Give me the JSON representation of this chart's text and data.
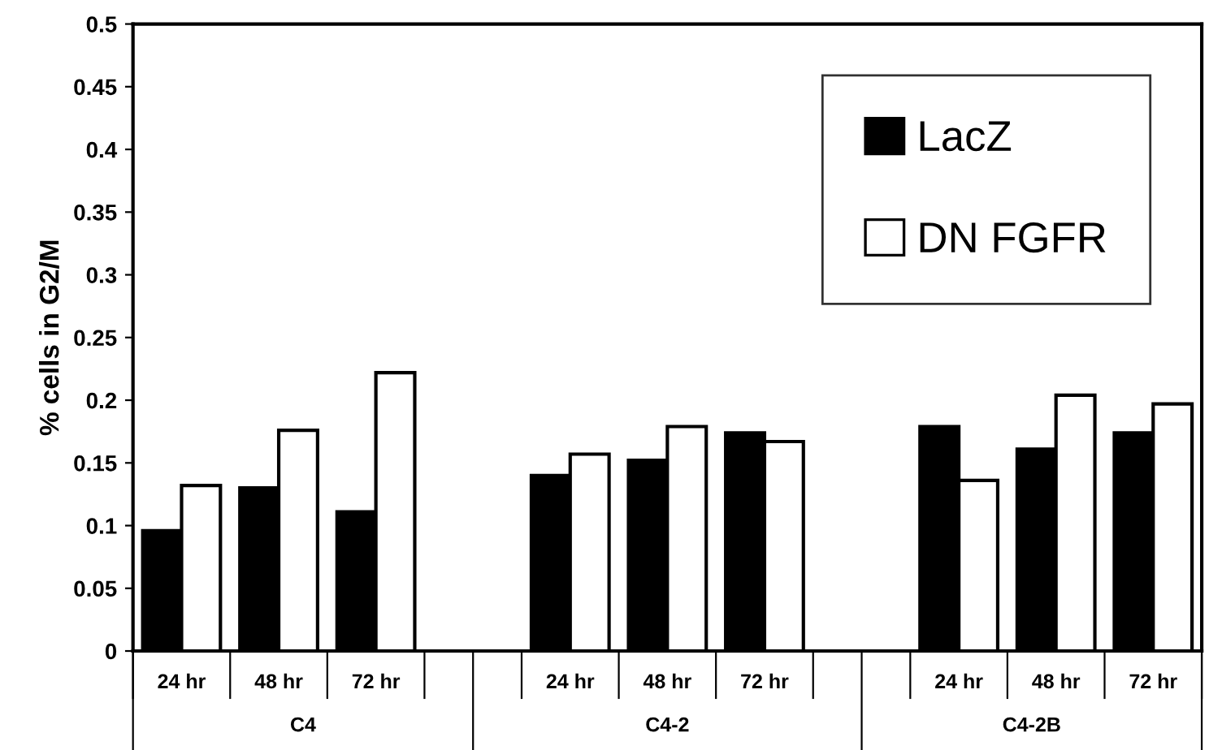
{
  "chart_data": {
    "type": "bar",
    "ylabel": "% cells in G2/M",
    "categories": [
      "24 hr",
      "48 hr",
      "72 hr",
      null,
      "24 hr",
      "48 hr",
      "72 hr",
      null,
      "24 hr",
      "48 hr",
      "72 hr"
    ],
    "series": [
      {
        "name": "LacZ",
        "color": "#000000",
        "values": [
          0.096,
          0.13,
          0.111,
          null,
          0.14,
          0.152,
          0.174,
          null,
          0.179,
          0.161,
          0.174
        ]
      },
      {
        "name": "DN FGFR",
        "color": "#ffffff",
        "values": [
          0.132,
          0.176,
          0.222,
          null,
          0.157,
          0.179,
          0.167,
          null,
          0.136,
          0.204,
          0.197
        ]
      }
    ],
    "annotations": [
      "C4",
      "C4-2",
      "C4-2B"
    ],
    "ylim": [
      0,
      0.5
    ],
    "yticks": [
      0,
      0.05,
      0.1,
      0.15,
      0.2,
      0.25,
      0.3,
      0.35,
      0.4,
      0.45,
      0.5
    ],
    "grid": false,
    "legend": "top right"
  }
}
